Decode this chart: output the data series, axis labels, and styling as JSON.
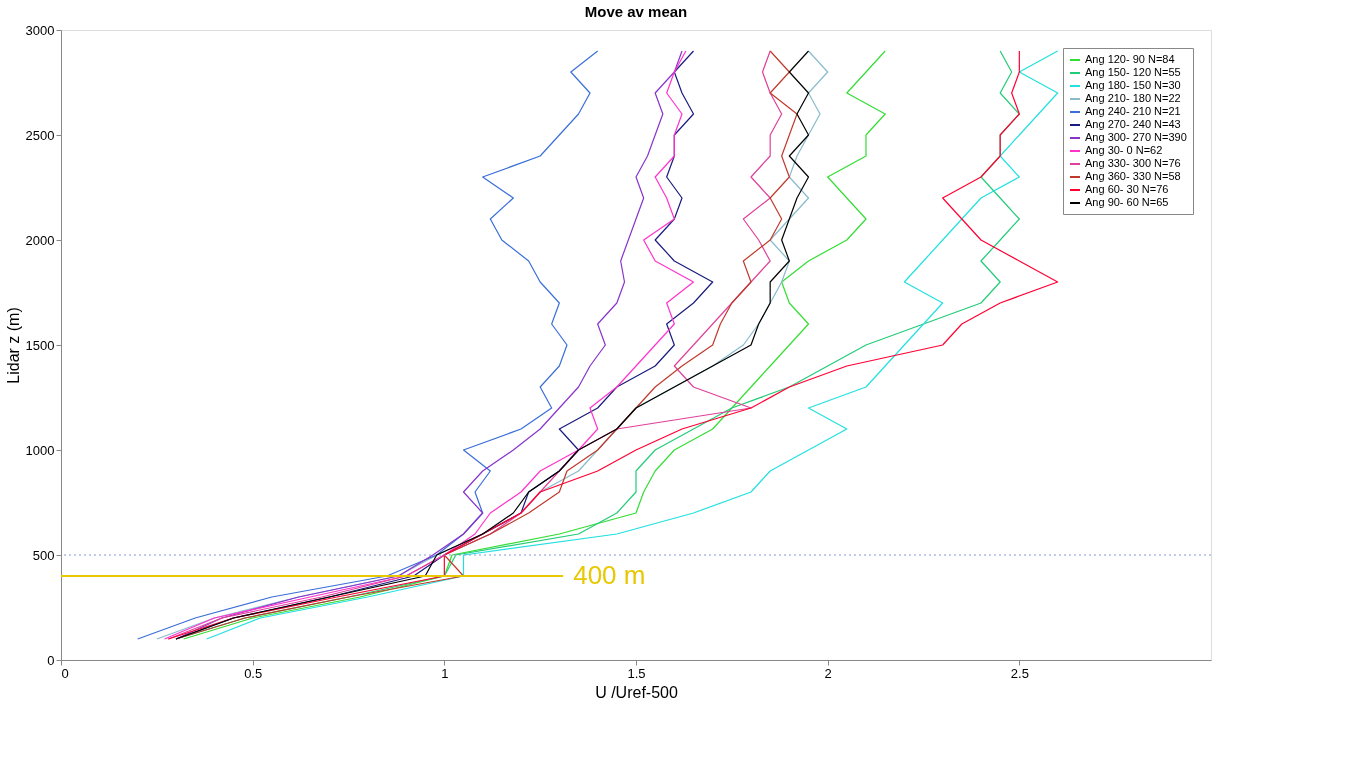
{
  "chart_data": {
    "type": "line",
    "title": "Move av mean",
    "xlabel": "U /Uref-500",
    "ylabel": "Lidar z (m)",
    "xlim": [
      0,
      3
    ],
    "xticks": [
      0,
      0.5,
      1,
      1.5,
      2,
      2.5
    ],
    "ylim": [
      0,
      3000
    ],
    "yticks": [
      0,
      500,
      1000,
      1500,
      2000,
      2500,
      3000
    ],
    "grid": false,
    "legend": "top right",
    "marker": "none",
    "line_style": "solid",
    "ref_lines": [
      {
        "axis": "y",
        "value": 500,
        "color": "#8899dd",
        "line_style": "dotted"
      }
    ],
    "annotations": [
      "400 m"
    ],
    "series": [
      {
        "name": "Ang 120- 90 N=84",
        "color": "#33dd33",
        "x": [
          0.32,
          0.5,
          0.78,
          1.0,
          1.02,
          1.3,
          1.5,
          1.52,
          1.55,
          1.6,
          1.7,
          1.75,
          1.8,
          1.85,
          1.9,
          1.95,
          1.9,
          1.88,
          1.95,
          2.05,
          2.1,
          2.05,
          2.0,
          2.1,
          2.1,
          2.15,
          2.05,
          2.1,
          2.15
        ],
        "values": [
          100,
          200,
          300,
          400,
          500,
          600,
          700,
          800,
          900,
          1000,
          1100,
          1200,
          1300,
          1400,
          1500,
          1600,
          1700,
          1800,
          1900,
          2000,
          2100,
          2200,
          2300,
          2400,
          2500,
          2600,
          2700,
          2800,
          2900
        ]
      },
      {
        "name": "Ang 150- 120 N=55",
        "color": "#22cc77",
        "x": [
          0.3,
          0.48,
          0.75,
          1.0,
          1.03,
          1.35,
          1.45,
          1.5,
          1.5,
          1.55,
          1.65,
          1.75,
          1.9,
          2.0,
          2.1,
          2.25,
          2.4,
          2.45,
          2.4,
          2.45,
          2.5,
          2.45,
          2.4,
          2.45,
          2.45,
          2.5,
          2.45,
          2.48,
          2.45
        ],
        "values": [
          100,
          200,
          300,
          400,
          500,
          600,
          700,
          800,
          900,
          1000,
          1100,
          1200,
          1300,
          1400,
          1500,
          1600,
          1700,
          1800,
          1900,
          2000,
          2100,
          2200,
          2300,
          2400,
          2500,
          2600,
          2700,
          2800,
          2900
        ]
      },
      {
        "name": "Ang 180- 150 N=30",
        "color": "#22e0e0",
        "x": [
          0.38,
          0.52,
          0.8,
          1.05,
          1.05,
          1.45,
          1.65,
          1.8,
          1.85,
          1.95,
          2.05,
          1.95,
          2.1,
          2.15,
          2.2,
          2.25,
          2.3,
          2.2,
          2.25,
          2.3,
          2.35,
          2.4,
          2.5,
          2.45,
          2.5,
          2.55,
          2.6,
          2.5,
          2.6
        ],
        "values": [
          100,
          200,
          300,
          400,
          500,
          600,
          700,
          800,
          900,
          1000,
          1100,
          1200,
          1300,
          1400,
          1500,
          1600,
          1700,
          1800,
          1900,
          2000,
          2100,
          2200,
          2300,
          2400,
          2500,
          2600,
          2700,
          2800,
          2900
        ]
      },
      {
        "name": "Ang 210- 180 N=22",
        "color": "#88bbcc",
        "x": [
          0.25,
          0.4,
          0.62,
          0.88,
          0.98,
          1.1,
          1.2,
          1.25,
          1.35,
          1.4,
          1.45,
          1.5,
          1.6,
          1.7,
          1.78,
          1.82,
          1.85,
          1.88,
          1.9,
          1.85,
          1.9,
          1.95,
          1.9,
          1.92,
          1.95,
          1.98,
          1.95,
          2.0,
          1.95
        ],
        "values": [
          100,
          200,
          300,
          400,
          500,
          600,
          700,
          800,
          900,
          1000,
          1100,
          1200,
          1300,
          1400,
          1500,
          1600,
          1700,
          1800,
          1900,
          2000,
          2100,
          2200,
          2300,
          2400,
          2500,
          2600,
          2700,
          2800,
          2900
        ]
      },
      {
        "name": "Ang 240- 210 N=21",
        "color": "#3a6fd8",
        "x": [
          0.2,
          0.35,
          0.55,
          0.85,
          0.98,
          1.05,
          1.1,
          1.08,
          1.12,
          1.05,
          1.2,
          1.28,
          1.25,
          1.3,
          1.32,
          1.28,
          1.3,
          1.25,
          1.22,
          1.15,
          1.12,
          1.18,
          1.1,
          1.25,
          1.3,
          1.35,
          1.38,
          1.33,
          1.4
        ],
        "values": [
          100,
          200,
          300,
          400,
          500,
          600,
          700,
          800,
          900,
          1000,
          1100,
          1200,
          1300,
          1400,
          1500,
          1600,
          1700,
          1800,
          1900,
          2000,
          2100,
          2200,
          2300,
          2400,
          2500,
          2600,
          2700,
          2800,
          2900
        ]
      },
      {
        "name": "Ang 270- 240 N=43",
        "color": "#1a1a80",
        "x": [
          0.3,
          0.45,
          0.7,
          0.92,
          1.0,
          1.1,
          1.2,
          1.22,
          1.3,
          1.35,
          1.3,
          1.4,
          1.45,
          1.55,
          1.6,
          1.58,
          1.65,
          1.7,
          1.6,
          1.55,
          1.6,
          1.62,
          1.58,
          1.6,
          1.6,
          1.65,
          1.62,
          1.6,
          1.65
        ],
        "values": [
          100,
          200,
          300,
          400,
          500,
          600,
          700,
          800,
          900,
          1000,
          1100,
          1200,
          1300,
          1400,
          1500,
          1600,
          1700,
          1800,
          1900,
          2000,
          2100,
          2200,
          2300,
          2400,
          2500,
          2600,
          2700,
          2800,
          2900
        ]
      },
      {
        "name": "Ang 300- 270 N=390",
        "color": "#8833cc",
        "x": [
          0.3,
          0.42,
          0.62,
          0.88,
          0.97,
          1.05,
          1.1,
          1.05,
          1.1,
          1.18,
          1.25,
          1.3,
          1.35,
          1.38,
          1.42,
          1.4,
          1.45,
          1.47,
          1.46,
          1.48,
          1.5,
          1.52,
          1.5,
          1.53,
          1.55,
          1.57,
          1.55,
          1.6,
          1.62
        ],
        "values": [
          100,
          200,
          300,
          400,
          500,
          600,
          700,
          800,
          900,
          1000,
          1100,
          1200,
          1300,
          1400,
          1500,
          1600,
          1700,
          1800,
          1900,
          2000,
          2100,
          2200,
          2300,
          2400,
          2500,
          2600,
          2700,
          2800,
          2900
        ]
      },
      {
        "name": "Ang 30- 0 N=62",
        "color": "#ff33cc",
        "x": [
          0.27,
          0.4,
          0.65,
          0.9,
          1.0,
          1.08,
          1.12,
          1.2,
          1.25,
          1.35,
          1.4,
          1.38,
          1.45,
          1.5,
          1.55,
          1.6,
          1.58,
          1.65,
          1.55,
          1.52,
          1.6,
          1.58,
          1.55,
          1.6,
          1.6,
          1.62,
          1.58,
          1.6,
          1.63
        ],
        "values": [
          100,
          200,
          300,
          400,
          500,
          600,
          700,
          800,
          900,
          1000,
          1100,
          1200,
          1300,
          1400,
          1500,
          1600,
          1700,
          1800,
          1900,
          2000,
          2100,
          2200,
          2300,
          2400,
          2500,
          2600,
          2700,
          2800,
          2900
        ]
      },
      {
        "name": "Ang 330- 300 N=76",
        "color": "#e0409a",
        "x": [
          0.28,
          0.42,
          0.68,
          0.9,
          1.0,
          1.12,
          1.2,
          1.25,
          1.3,
          1.35,
          1.45,
          1.8,
          1.65,
          1.6,
          1.65,
          1.7,
          1.75,
          1.8,
          1.85,
          1.82,
          1.78,
          1.85,
          1.8,
          1.85,
          1.85,
          1.88,
          1.85,
          1.83,
          1.85
        ],
        "values": [
          100,
          200,
          300,
          400,
          500,
          600,
          700,
          800,
          900,
          1000,
          1100,
          1200,
          1300,
          1400,
          1500,
          1600,
          1700,
          1800,
          1900,
          2000,
          2100,
          2200,
          2300,
          2400,
          2500,
          2600,
          2700,
          2800,
          2900
        ]
      },
      {
        "name": "Ang 360- 330 N=58",
        "color": "#c0392b",
        "x": [
          0.3,
          0.48,
          0.75,
          1.05,
          1.0,
          1.12,
          1.22,
          1.3,
          1.32,
          1.4,
          1.45,
          1.5,
          1.55,
          1.62,
          1.7,
          1.72,
          1.75,
          1.8,
          1.78,
          1.85,
          1.88,
          1.85,
          1.9,
          1.88,
          1.9,
          1.92,
          1.85,
          1.9,
          1.85
        ],
        "values": [
          100,
          200,
          300,
          400,
          500,
          600,
          700,
          800,
          900,
          1000,
          1100,
          1200,
          1300,
          1400,
          1500,
          1600,
          1700,
          1800,
          1900,
          2000,
          2100,
          2200,
          2300,
          2400,
          2500,
          2600,
          2700,
          2800,
          2900
        ]
      },
      {
        "name": "Ang 60- 30 N=76",
        "color": "#ff0033",
        "x": [
          0.28,
          0.45,
          0.72,
          1.0,
          1.0,
          1.1,
          1.2,
          1.25,
          1.4,
          1.5,
          1.62,
          1.8,
          1.9,
          2.05,
          2.3,
          2.35,
          2.45,
          2.6,
          2.5,
          2.4,
          2.35,
          2.3,
          2.4,
          2.45,
          2.45,
          2.5,
          2.48,
          2.5,
          2.5
        ],
        "values": [
          100,
          200,
          300,
          400,
          500,
          600,
          700,
          800,
          900,
          1000,
          1100,
          1200,
          1300,
          1400,
          1500,
          1600,
          1700,
          1800,
          1900,
          2000,
          2100,
          2200,
          2300,
          2400,
          2500,
          2600,
          2700,
          2800,
          2900
        ]
      },
      {
        "name": "Ang 90- 60 N=65",
        "color": "#000000",
        "x": [
          0.3,
          0.45,
          0.7,
          0.95,
          0.98,
          1.1,
          1.18,
          1.22,
          1.3,
          1.35,
          1.45,
          1.5,
          1.6,
          1.7,
          1.8,
          1.82,
          1.85,
          1.85,
          1.9,
          1.88,
          1.9,
          1.92,
          1.95,
          1.9,
          1.95,
          1.92,
          1.95,
          1.9,
          1.95
        ],
        "values": [
          100,
          200,
          300,
          400,
          500,
          600,
          700,
          800,
          900,
          1000,
          1100,
          1200,
          1300,
          1400,
          1500,
          1600,
          1700,
          1800,
          1900,
          2000,
          2100,
          2200,
          2300,
          2400,
          2500,
          2600,
          2700,
          2800,
          2900
        ]
      },
      {
        "color": "#e8c800",
        "x": [
          0,
          1.31
        ],
        "values": [
          400,
          400
        ]
      }
    ]
  }
}
